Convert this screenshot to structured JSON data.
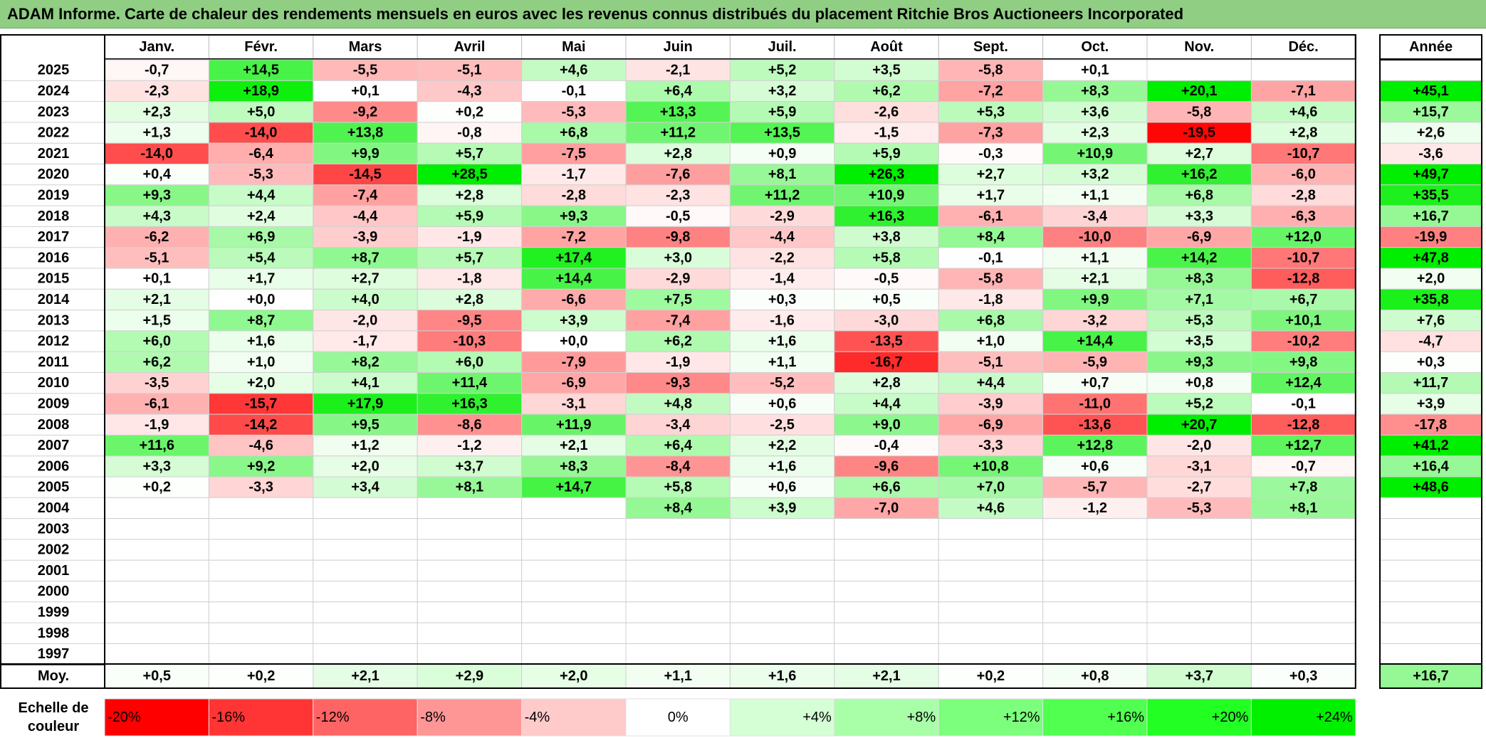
{
  "title": "ADAM Informe. Carte de chaleur des rendements mensuels en euros avec les revenus connus distribués du placement Ritchie Bros Auctioneers Incorporated",
  "chart_data": {
    "type": "heatmap",
    "title": "ADAM Informe. Carte de chaleur des rendements mensuels en euros avec les revenus connus distribués du placement Ritchie Bros Auctioneers Incorporated",
    "months": [
      "Janv.",
      "Févr.",
      "Mars",
      "Avril",
      "Mai",
      "Juin",
      "Juil.",
      "Août",
      "Sept.",
      "Oct.",
      "Nov.",
      "Déc."
    ],
    "year_header": "Année",
    "years": [
      2025,
      2024,
      2023,
      2022,
      2021,
      2020,
      2019,
      2018,
      2017,
      2016,
      2015,
      2014,
      2013,
      2012,
      2011,
      2010,
      2009,
      2008,
      2007,
      2006,
      2005,
      2004,
      2003,
      2002,
      2001,
      2000,
      1999,
      1998,
      1997
    ],
    "values": [
      [
        -0.7,
        14.5,
        -5.5,
        -5.1,
        4.6,
        -2.1,
        5.2,
        3.5,
        -5.8,
        0.1,
        null,
        null
      ],
      [
        -2.3,
        18.9,
        0.1,
        -4.3,
        -0.1,
        6.4,
        3.2,
        6.2,
        -7.2,
        8.3,
        20.1,
        -7.1
      ],
      [
        2.3,
        5.0,
        -9.2,
        0.2,
        -5.3,
        13.3,
        5.9,
        -2.6,
        5.3,
        3.6,
        -5.8,
        4.6
      ],
      [
        1.3,
        -14.0,
        13.8,
        -0.8,
        6.8,
        11.2,
        13.5,
        -1.5,
        -7.3,
        2.3,
        -19.5,
        2.8
      ],
      [
        -14.0,
        -6.4,
        9.9,
        5.7,
        -7.5,
        2.8,
        0.9,
        5.9,
        -0.3,
        10.9,
        2.7,
        -10.7
      ],
      [
        0.4,
        -5.3,
        -14.5,
        28.5,
        -1.7,
        -7.6,
        8.1,
        26.3,
        2.7,
        3.2,
        16.2,
        -6.0
      ],
      [
        9.3,
        4.4,
        -7.4,
        2.8,
        -2.8,
        -2.3,
        11.2,
        10.9,
        1.7,
        1.1,
        6.8,
        -2.8
      ],
      [
        4.3,
        2.4,
        -4.4,
        5.9,
        9.3,
        -0.5,
        -2.9,
        16.3,
        -6.1,
        -3.4,
        3.3,
        -6.3
      ],
      [
        -6.2,
        6.9,
        -3.9,
        -1.9,
        -7.2,
        -9.8,
        -4.4,
        3.8,
        8.4,
        -10.0,
        -6.9,
        12.0
      ],
      [
        -5.1,
        5.4,
        8.7,
        5.7,
        17.4,
        3.0,
        -2.2,
        5.8,
        -0.1,
        1.1,
        14.2,
        -10.7
      ],
      [
        0.1,
        1.7,
        2.7,
        -1.8,
        14.4,
        -2.9,
        -1.4,
        -0.5,
        -5.8,
        2.1,
        8.3,
        -12.8
      ],
      [
        2.1,
        0.0,
        4.0,
        2.8,
        -6.6,
        7.5,
        0.3,
        0.5,
        -1.8,
        9.9,
        7.1,
        6.7
      ],
      [
        1.5,
        8.7,
        -2.0,
        -9.5,
        3.9,
        -7.4,
        -1.6,
        -3.0,
        6.8,
        -3.2,
        5.3,
        10.1
      ],
      [
        6.0,
        1.6,
        -1.7,
        -10.3,
        0.0,
        6.2,
        1.6,
        -13.5,
        1.0,
        14.4,
        3.5,
        -10.2
      ],
      [
        6.2,
        1.0,
        8.2,
        6.0,
        -7.9,
        -1.9,
        1.1,
        -16.7,
        -5.1,
        -5.9,
        9.3,
        9.8
      ],
      [
        -3.5,
        2.0,
        4.1,
        11.4,
        -6.9,
        -9.3,
        -5.2,
        2.8,
        4.4,
        0.7,
        0.8,
        12.4
      ],
      [
        -6.1,
        -15.7,
        17.9,
        16.3,
        -3.1,
        4.8,
        0.6,
        4.4,
        -3.9,
        -11.0,
        5.2,
        -0.1
      ],
      [
        -1.9,
        -14.2,
        9.5,
        -8.6,
        11.9,
        -3.4,
        -2.5,
        9.0,
        -6.9,
        -13.6,
        20.7,
        -12.8
      ],
      [
        11.6,
        -4.6,
        1.2,
        -1.2,
        2.1,
        6.4,
        2.2,
        -0.4,
        -3.3,
        12.8,
        -2.0,
        12.7
      ],
      [
        3.3,
        9.2,
        2.0,
        3.7,
        8.3,
        -8.4,
        1.6,
        -9.6,
        10.8,
        0.6,
        -3.1,
        -0.7
      ],
      [
        0.2,
        -3.3,
        3.4,
        8.1,
        14.7,
        5.8,
        0.6,
        6.6,
        7.0,
        -5.7,
        -2.7,
        7.8
      ],
      [
        null,
        null,
        null,
        null,
        null,
        8.4,
        3.9,
        -7.0,
        4.6,
        -1.2,
        -5.3,
        8.1
      ],
      [
        null,
        null,
        null,
        null,
        null,
        null,
        null,
        null,
        null,
        null,
        null,
        null
      ],
      [
        null,
        null,
        null,
        null,
        null,
        null,
        null,
        null,
        null,
        null,
        null,
        null
      ],
      [
        null,
        null,
        null,
        null,
        null,
        null,
        null,
        null,
        null,
        null,
        null,
        null
      ],
      [
        null,
        null,
        null,
        null,
        null,
        null,
        null,
        null,
        null,
        null,
        null,
        null
      ],
      [
        null,
        null,
        null,
        null,
        null,
        null,
        null,
        null,
        null,
        null,
        null,
        null
      ],
      [
        null,
        null,
        null,
        null,
        null,
        null,
        null,
        null,
        null,
        null,
        null,
        null
      ],
      [
        null,
        null,
        null,
        null,
        null,
        null,
        null,
        null,
        null,
        null,
        null,
        null
      ]
    ],
    "annual": [
      null,
      45.1,
      15.7,
      2.6,
      -3.6,
      49.7,
      35.5,
      16.7,
      -19.9,
      47.8,
      2.0,
      35.8,
      7.6,
      -4.7,
      0.3,
      11.7,
      3.9,
      -17.8,
      41.2,
      16.4,
      48.6,
      null,
      null,
      null,
      null,
      null,
      null,
      null,
      null
    ],
    "average_label": "Moy.",
    "averages": [
      0.5,
      0.2,
      2.1,
      2.9,
      2.0,
      1.1,
      1.6,
      2.1,
      0.2,
      0.8,
      3.7,
      0.3
    ],
    "average_annual": 16.7,
    "scale_label_line1": "Echelle de",
    "scale_label_line2": "couleur",
    "scale": [
      {
        "label": "-20%",
        "value": -20,
        "color": "#ff0000"
      },
      {
        "label": "-16%",
        "value": -16,
        "color": "#ff3535"
      },
      {
        "label": "-12%",
        "value": -12,
        "color": "#ff6464"
      },
      {
        "label": "-8%",
        "value": -8,
        "color": "#ff9696"
      },
      {
        "label": "-4%",
        "value": -4,
        "color": "#ffcaca"
      },
      {
        "label": "0%",
        "value": 0,
        "color": "#ffffff"
      },
      {
        "label": "+4%",
        "value": 4,
        "color": "#d5ffd5"
      },
      {
        "label": "+8%",
        "value": 8,
        "color": "#a8ffa8"
      },
      {
        "label": "+12%",
        "value": 12,
        "color": "#7cff7c"
      },
      {
        "label": "+16%",
        "value": 16,
        "color": "#50ff50"
      },
      {
        "label": "+20%",
        "value": 20,
        "color": "#22ff22"
      },
      {
        "label": "+24%",
        "value": 24,
        "color": "#00f000"
      }
    ],
    "colors": {
      "negative_max": "#ff0000",
      "positive_max": "#00ee00",
      "title_bg": "#8fce83"
    }
  }
}
